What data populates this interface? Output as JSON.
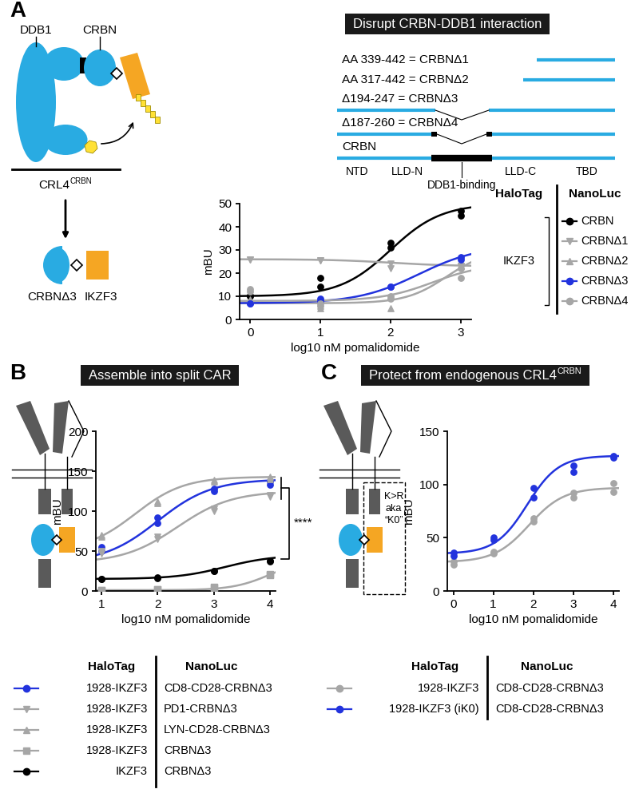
{
  "panels": [
    {
      "letter": "A",
      "header": {
        "text": "Disrupt CRBN-DDB1 interaction"
      },
      "schematic": {
        "labels": [
          "DDB1",
          "CRBN"
        ],
        "complex": {
          "text": "CRL4",
          "sup": "CRBN"
        },
        "products": [
          "CRBNΔ3",
          "IKZF3"
        ]
      },
      "constructs": {
        "rows": [
          "AA 339-442 = CRBNΔ1",
          "AA 317-442 = CRBNΔ2",
          "Δ194-247 = CRBNΔ3",
          "Δ187-260 = CRBNΔ4",
          "CRBN"
        ],
        "domains": [
          "NTD",
          "LLD-N",
          "DDB1-binding",
          "LLD-C",
          "TBD"
        ]
      }
    },
    {
      "letter": "B",
      "header": {
        "text": "Assemble into split CAR"
      },
      "annotations": [
        {
          "text": "****"
        }
      ]
    },
    {
      "letter": "C",
      "header": {
        "text": "Protect from endogenous CRL4",
        "sup": "CRBN"
      },
      "mutation_note": [
        "K>R",
        "aka",
        "“K0”"
      ]
    }
  ],
  "chart_data": [
    {
      "type": "scatter",
      "xlabel": "log10 nM pomalidomide",
      "ylabel": "mBU",
      "xlim": [
        -0.15,
        3.15
      ],
      "xticks": [
        0,
        1,
        2,
        3
      ],
      "ylim": [
        0,
        50
      ],
      "yticks": [
        0,
        10,
        20,
        30,
        40,
        50
      ],
      "legend_headers": [
        "HaloTag",
        "NanoLuc"
      ],
      "halotag": "IKZF3",
      "x": [
        0,
        1,
        2,
        3
      ],
      "series": [
        {
          "name": "CRBN",
          "color": "#000000",
          "marker": "circle",
          "values": [
            [
              10,
              10.5
            ],
            [
              14,
              18
            ],
            [
              31,
              33
            ],
            [
              45,
              47
            ]
          ],
          "fit": {
            "bottom": 10,
            "top": 50,
            "log_ec50": 2.0,
            "hill": 1.2
          }
        },
        {
          "name": "CRBNΔ1",
          "color": "#a6a6a6",
          "marker": "triangle_down",
          "values": [
            [
              26,
              26
            ],
            [
              25.5,
              25.5
            ],
            [
              24,
              22
            ],
            [
              23,
              23
            ]
          ],
          "fit": {
            "bottom": 26,
            "top": 23,
            "log_ec50": 2.0,
            "hill": 1.0
          }
        },
        {
          "name": "CRBNΔ2",
          "color": "#a6a6a6",
          "marker": "triangle_up",
          "values": [
            [
              8,
              8.5
            ],
            [
              6,
              5
            ],
            [
              10,
              5
            ],
            [
              23,
              25
            ]
          ],
          "fit": {
            "bottom": 7,
            "top": 30,
            "log_ec50": 2.8,
            "hill": 1.5
          }
        },
        {
          "name": "CRBNΔ3",
          "color": "#2233dd",
          "marker": "circle",
          "values": [
            [
              7,
              7
            ],
            [
              8,
              9
            ],
            [
              14,
              14
            ],
            [
              26,
              27
            ]
          ],
          "fit": {
            "bottom": 7,
            "top": 32,
            "log_ec50": 2.4,
            "hill": 1.0
          }
        },
        {
          "name": "CRBNΔ4",
          "color": "#a6a6a6",
          "marker": "circle",
          "values": [
            [
              12,
              13
            ],
            [
              6,
              7
            ],
            [
              9,
              10
            ],
            [
              18,
              22
            ]
          ],
          "fit": {
            "bottom": 8,
            "top": 24,
            "log_ec50": 2.6,
            "hill": 1.2
          }
        }
      ]
    },
    {
      "type": "scatter",
      "xlabel": "log10 nM pomalidomide",
      "ylabel": "mBU",
      "xlim": [
        0.9,
        4.1
      ],
      "xticks": [
        1,
        2,
        3,
        4
      ],
      "ylim": [
        0,
        200
      ],
      "yticks": [
        0,
        50,
        100,
        150,
        200
      ],
      "legend_headers": [
        "HaloTag",
        "NanoLuc"
      ],
      "x": [
        1,
        2,
        3,
        4
      ],
      "series": [
        {
          "halotag": "1928-IKZF3",
          "nanoluc": "CD8-CD28-CRBNΔ3",
          "color": "#2233dd",
          "marker": "circle",
          "values": [
            [
              50,
              55
            ],
            [
              85,
              92
            ],
            [
              125,
              128
            ],
            [
              133,
              137
            ]
          ],
          "fit": {
            "bottom": 35,
            "top": 140,
            "log_ec50": 2.0,
            "hill": 0.9
          }
        },
        {
          "halotag": "1928-IKZF3",
          "nanoluc": "PD1-CRBNΔ3",
          "color": "#a6a6a6",
          "marker": "triangle_down",
          "values": [
            [
              47,
              50
            ],
            [
              65,
              68
            ],
            [
              100,
              103
            ],
            [
              118,
              120
            ]
          ],
          "fit": {
            "bottom": 35,
            "top": 125,
            "log_ec50": 2.35,
            "hill": 0.9
          }
        },
        {
          "halotag": "1928-IKZF3",
          "nanoluc": "LYN-CD28-CRBNΔ3",
          "color": "#a6a6a6",
          "marker": "triangle_up",
          "values": [
            [
              68,
              70
            ],
            [
              110,
              112
            ],
            [
              137,
              139
            ],
            [
              140,
              143
            ]
          ],
          "fit": {
            "bottom": 50,
            "top": 143,
            "log_ec50": 1.6,
            "hill": 1.0
          }
        },
        {
          "halotag": "1928-IKZF3",
          "nanoluc": "CRBNΔ3",
          "color": "#a6a6a6",
          "marker": "square",
          "values": [
            [
              1,
              1
            ],
            [
              2,
              2
            ],
            [
              5,
              4
            ],
            [
              20,
              21
            ]
          ],
          "fit": {
            "bottom": 1,
            "top": 40,
            "log_ec50": 4.0,
            "hill": 1.3
          }
        },
        {
          "halotag": "IKZF3",
          "nanoluc": "CRBNΔ3",
          "color": "#000000",
          "marker": "circle",
          "values": [
            [
              15,
              15
            ],
            [
              16,
              17
            ],
            [
              25,
              25
            ],
            [
              37,
              38
            ]
          ],
          "fit": {
            "bottom": 15,
            "top": 45,
            "log_ec50": 3.2,
            "hill": 1.0
          }
        }
      ]
    },
    {
      "type": "scatter",
      "xlabel": "log10 nM pomalidomide",
      "ylabel": "mBU",
      "xlim": [
        -0.15,
        4.15
      ],
      "xticks": [
        0,
        1,
        2,
        3,
        4
      ],
      "ylim": [
        0,
        150
      ],
      "yticks": [
        0,
        50,
        100,
        150
      ],
      "legend_headers": [
        "HaloTag",
        "NanoLuc"
      ],
      "x": [
        0,
        1,
        2,
        3,
        4
      ],
      "series": [
        {
          "halotag": "1928-IKZF3",
          "nanoluc": "CD8-CD28-CRBNΔ3",
          "color": "#a6a6a6",
          "marker": "circle",
          "values": [
            [
              25,
              28
            ],
            [
              37,
              35
            ],
            [
              65,
              68
            ],
            [
              88,
              92
            ],
            [
              93,
              101
            ]
          ],
          "fit": {
            "bottom": 27,
            "top": 97,
            "log_ec50": 1.9,
            "hill": 1.0
          }
        },
        {
          "halotag": "1928-IKZF3 (iK0)",
          "nanoluc": "CD8-CD28-CRBNΔ3",
          "color": "#2233dd",
          "marker": "circle",
          "values": [
            [
              33,
              36
            ],
            [
              48,
              50
            ],
            [
              88,
              97
            ],
            [
              112,
              118
            ],
            [
              125,
              127
            ]
          ],
          "fit": {
            "bottom": 35,
            "top": 127,
            "log_ec50": 1.85,
            "hill": 1.1
          }
        }
      ]
    }
  ]
}
